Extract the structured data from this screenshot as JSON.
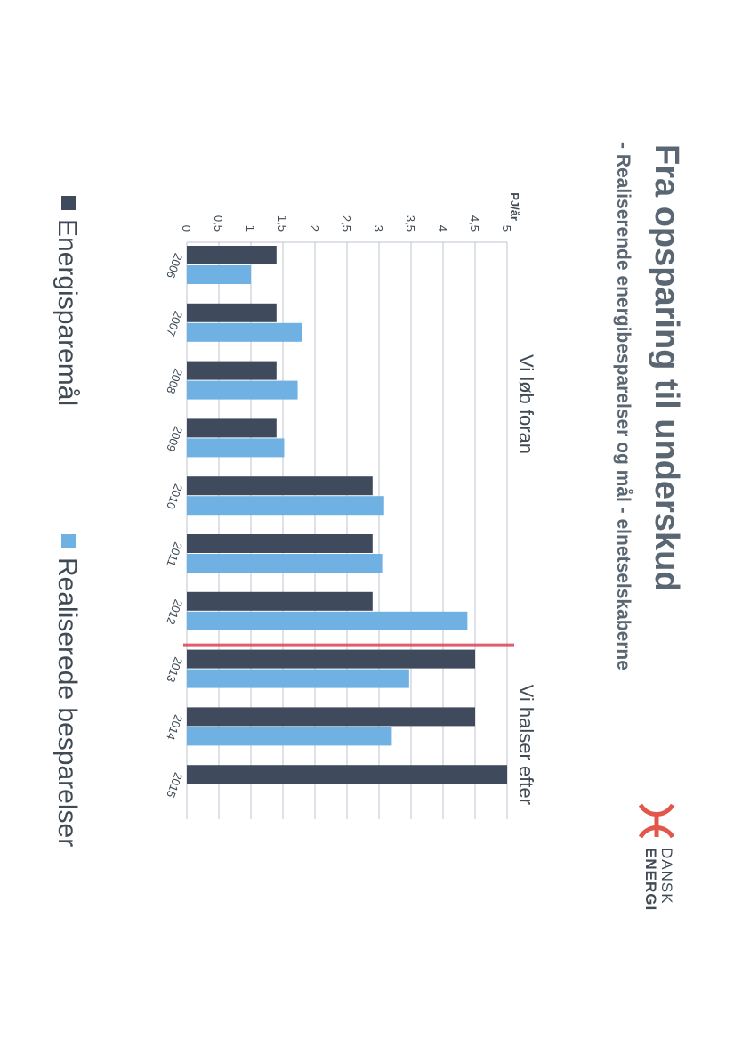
{
  "slide": {
    "title": "Fra opsparing til underskud",
    "subtitle": "- Realiserende energibesparelser og mål - elnetselskaberne"
  },
  "logo": {
    "line1": "DANSK",
    "line2": "ENERGI",
    "mark_icon": "dansk-energi-logo-mark",
    "color": "#e2574c"
  },
  "colors": {
    "series1": "#3f4a5c",
    "series2": "#6fb1e3",
    "divider": "#e25c6e",
    "grid": "#bcc3cf",
    "text": "#3f4a55"
  },
  "chart_data": {
    "type": "bar",
    "ylabel": "PJ/år",
    "ylim": [
      0,
      5
    ],
    "yticks": [
      "0",
      "0,5",
      "1",
      "1,5",
      "2",
      "2,5",
      "3",
      "3,5",
      "4",
      "4,5",
      "5"
    ],
    "categories": [
      "2006",
      "2007",
      "2008",
      "2009",
      "2010",
      "2011",
      "2012",
      "2013",
      "2014",
      "2015"
    ],
    "series": [
      {
        "name": "Energisparemål",
        "values": [
          1.4,
          1.4,
          1.4,
          1.4,
          2.9,
          2.9,
          2.9,
          4.5,
          4.5,
          5.0
        ]
      },
      {
        "name": "Realiserede besparelser",
        "values": [
          1.0,
          1.8,
          1.73,
          1.52,
          3.08,
          3.05,
          4.38,
          3.47,
          3.2,
          null
        ]
      }
    ],
    "annotations": [
      "Vi løb foran",
      "Vi halser efter"
    ],
    "divider_between": [
      "2012",
      "2013"
    ],
    "grid": true,
    "legend": "bottom"
  }
}
